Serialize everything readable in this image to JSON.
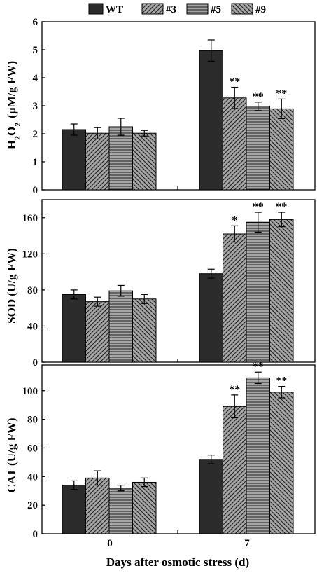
{
  "colors": {
    "WT": "#2b2b2b",
    "hatch_fill": "#a6a6a6",
    "hatch_line": "#2b2b2b"
  },
  "legend": [
    "WT",
    "#3",
    "#5",
    "#9"
  ],
  "xlabel": "Days after osmotic stress (d)",
  "chart_data": [
    {
      "type": "bar",
      "categories": [
        "0",
        "7"
      ],
      "ylabel_main": "H",
      "ylabel_sub1": "2",
      "ylabel_o": "O",
      "ylabel_sub2": "2",
      "ylabel_unit": "(μM/g FW)",
      "ylim": [
        0,
        6
      ],
      "yticks": [
        "0",
        "1",
        "2",
        "3",
        "4",
        "5",
        "6"
      ],
      "series": [
        {
          "name": "WT",
          "values": [
            2.15,
            4.97
          ],
          "errors": [
            0.2,
            0.38
          ],
          "sig": [
            "",
            ""
          ]
        },
        {
          "name": "#3",
          "values": [
            2.02,
            3.28
          ],
          "errors": [
            0.2,
            0.38
          ],
          "sig": [
            "",
            "**"
          ]
        },
        {
          "name": "#5",
          "values": [
            2.25,
            2.98
          ],
          "errors": [
            0.3,
            0.15
          ],
          "sig": [
            "",
            "**"
          ]
        },
        {
          "name": "#9",
          "values": [
            2.02,
            2.89
          ],
          "errors": [
            0.1,
            0.35
          ],
          "sig": [
            "",
            "**"
          ]
        }
      ]
    },
    {
      "type": "bar",
      "categories": [
        "0",
        "7"
      ],
      "ylabel": "SOD (U/g FW)",
      "ylim": [
        0,
        180
      ],
      "yticks": [
        "0",
        "40",
        "80",
        "120",
        "160"
      ],
      "series": [
        {
          "name": "WT",
          "values": [
            75,
            98
          ],
          "errors": [
            5,
            5
          ],
          "sig": [
            "",
            ""
          ]
        },
        {
          "name": "#3",
          "values": [
            67,
            142
          ],
          "errors": [
            5,
            9
          ],
          "sig": [
            "",
            "*"
          ]
        },
        {
          "name": "#5",
          "values": [
            79,
            155
          ],
          "errors": [
            6,
            11
          ],
          "sig": [
            "",
            "**"
          ]
        },
        {
          "name": "#9",
          "values": [
            70,
            158
          ],
          "errors": [
            5,
            8
          ],
          "sig": [
            "",
            "**"
          ]
        }
      ]
    },
    {
      "type": "bar",
      "categories": [
        "0",
        "7"
      ],
      "ylabel": "CAT (U/g FW)",
      "ylim": [
        0,
        118
      ],
      "yticks": [
        "0",
        "20",
        "40",
        "60",
        "80",
        "100"
      ],
      "series": [
        {
          "name": "WT",
          "values": [
            34,
            52
          ],
          "errors": [
            3,
            3
          ],
          "sig": [
            "",
            ""
          ]
        },
        {
          "name": "#3",
          "values": [
            39,
            89
          ],
          "errors": [
            5,
            8
          ],
          "sig": [
            "",
            "**"
          ]
        },
        {
          "name": "#5",
          "values": [
            32,
            109
          ],
          "errors": [
            2,
            4
          ],
          "sig": [
            "",
            "**"
          ]
        },
        {
          "name": "#9",
          "values": [
            36,
            99
          ],
          "errors": [
            3,
            4
          ],
          "sig": [
            "",
            "**"
          ]
        }
      ]
    }
  ]
}
